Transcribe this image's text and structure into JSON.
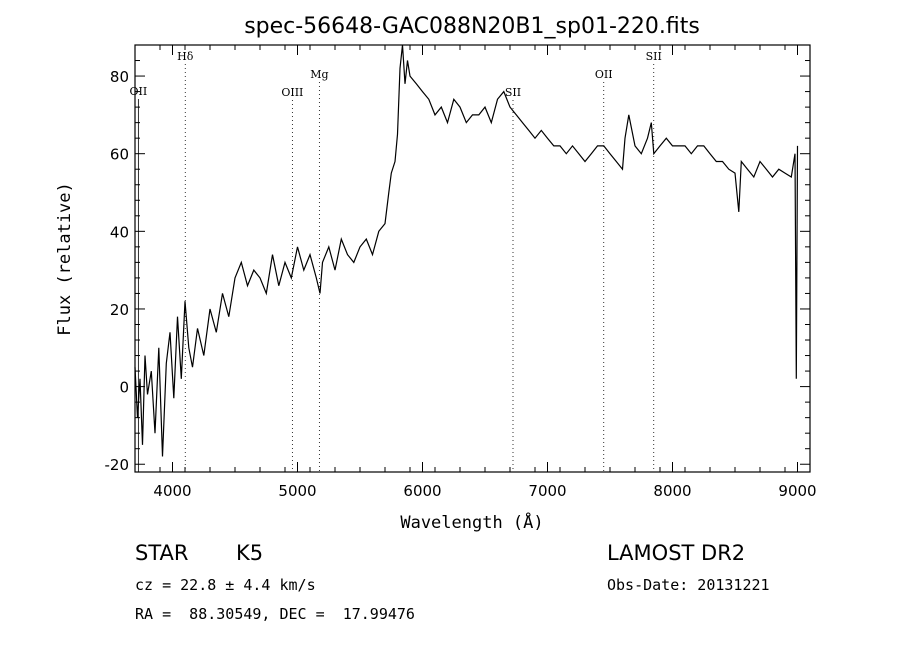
{
  "chart_data": {
    "type": "line",
    "title": "spec-56648-GAC088N20B1_sp01-220.fits",
    "xlabel": "Wavelength (Å)",
    "ylabel": "Flux (relative)",
    "xlim": [
      3700,
      9100
    ],
    "ylim": [
      -22,
      88
    ],
    "xticks": [
      4000,
      5000,
      6000,
      7000,
      8000,
      9000
    ],
    "yticks": [
      -20,
      0,
      20,
      40,
      60,
      80
    ],
    "grid": false,
    "series": [
      {
        "x": [
          3700,
          3720,
          3740,
          3760,
          3780,
          3800,
          3830,
          3860,
          3890,
          3920,
          3950,
          3980,
          4010,
          4040,
          4070,
          4100,
          4130,
          4160,
          4200,
          4250,
          4300,
          4350,
          4400,
          4450,
          4500,
          4550,
          4600,
          4650,
          4700,
          4750,
          4800,
          4850,
          4900,
          4950,
          5000,
          5050,
          5100,
          5150,
          5180,
          5200,
          5250,
          5300,
          5350,
          5400,
          5450,
          5500,
          5550,
          5600,
          5650,
          5700,
          5730,
          5750,
          5780,
          5800,
          5820,
          5840,
          5860,
          5880,
          5900,
          5950,
          6000,
          6050,
          6100,
          6150,
          6200,
          6250,
          6300,
          6350,
          6400,
          6450,
          6500,
          6550,
          6600,
          6650,
          6700,
          6750,
          6800,
          6850,
          6900,
          6950,
          7000,
          7050,
          7100,
          7150,
          7200,
          7250,
          7300,
          7350,
          7400,
          7450,
          7500,
          7550,
          7600,
          7620,
          7650,
          7700,
          7750,
          7800,
          7830,
          7850,
          7900,
          7950,
          8000,
          8050,
          8100,
          8150,
          8200,
          8250,
          8300,
          8350,
          8400,
          8450,
          8500,
          8530,
          8550,
          8600,
          8650,
          8700,
          8750,
          8800,
          8850,
          8900,
          8950,
          8980,
          8990,
          9000
        ],
        "y": [
          5,
          -8,
          2,
          -15,
          8,
          -2,
          4,
          -12,
          10,
          -18,
          6,
          14,
          -3,
          18,
          2,
          22,
          10,
          5,
          15,
          8,
          20,
          14,
          24,
          18,
          28,
          32,
          26,
          30,
          28,
          24,
          34,
          26,
          32,
          28,
          36,
          30,
          34,
          28,
          24,
          32,
          36,
          30,
          38,
          34,
          32,
          36,
          38,
          34,
          40,
          42,
          50,
          55,
          58,
          65,
          82,
          88,
          78,
          84,
          80,
          78,
          76,
          74,
          70,
          72,
          68,
          74,
          72,
          68,
          70,
          70,
          72,
          68,
          74,
          76,
          72,
          70,
          68,
          66,
          64,
          66,
          64,
          62,
          62,
          60,
          62,
          60,
          58,
          60,
          62,
          62,
          60,
          58,
          56,
          64,
          70,
          62,
          60,
          64,
          68,
          60,
          62,
          64,
          62,
          62,
          62,
          60,
          62,
          62,
          60,
          58,
          58,
          56,
          55,
          45,
          58,
          56,
          54,
          58,
          56,
          54,
          56,
          55,
          54,
          60,
          2,
          62
        ]
      }
    ],
    "lines": [
      {
        "label": "OII",
        "x": 3727,
        "dotted": false
      },
      {
        "label": "Hδ",
        "x": 4102,
        "dotted": true
      },
      {
        "label": "OIII",
        "x": 4959,
        "dotted": true
      },
      {
        "label": "Mg",
        "x": 5175,
        "dotted": true
      },
      {
        "label": "SII",
        "x": 6724,
        "dotted": true
      },
      {
        "label": "OII",
        "x": 7450,
        "dotted": true
      },
      {
        "label": "SII",
        "x": 7850,
        "dotted": true
      }
    ]
  },
  "info": {
    "class_label": "STAR",
    "subclass": "K5",
    "cz": "cz = 22.8 ± 4.4 km/s",
    "coords": "RA =  88.30549, DEC =  17.99476",
    "survey": "LAMOST DR2",
    "obs_date": "Obs-Date: 20131221"
  }
}
